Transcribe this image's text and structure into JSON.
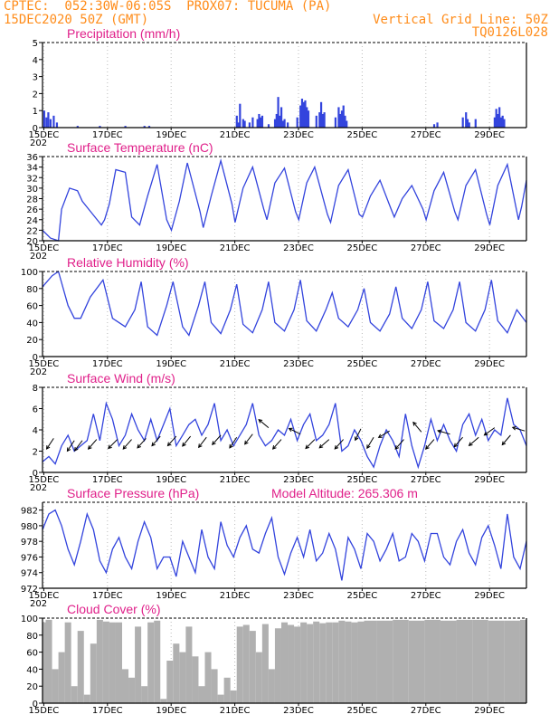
{
  "header": {
    "line1": "CPTEC:  052:30W-06:05S  PROX07: TUCUMA (PA)",
    "line2_left": "15DEC2020 50Z (GMT)",
    "line2_right": "Vertical Grid Line: 50Z",
    "line3_right": "TQ0126L028"
  },
  "colors": {
    "series": "#3344dd",
    "title": "#e0208a",
    "header": "#ff8c1a",
    "cloud": "#b0b0b0",
    "arrow": "#000000"
  },
  "x_axis": {
    "labels": [
      "15DEC",
      "17DEC",
      "19DEC",
      "21DEC",
      "23DEC",
      "25DEC",
      "27DEC",
      "29DEC"
    ],
    "range_days": [
      0,
      15.2
    ],
    "cut_label": "202"
  },
  "chart_data": [
    {
      "type": "bar",
      "title": "Precipitation (mm/h)",
      "ylim": [
        0,
        5
      ],
      "yticks": [
        "0",
        "1",
        "2",
        "3",
        "4",
        "5"
      ],
      "note": "hourly precipitation bars; values estimated",
      "x_days": [
        0.05,
        0.12,
        0.18,
        0.25,
        0.35,
        0.45,
        1.1,
        1.8,
        2.6,
        3.2,
        3.35,
        6.1,
        6.15,
        6.2,
        6.3,
        6.35,
        6.5,
        6.6,
        6.75,
        6.8,
        6.85,
        6.9,
        7.1,
        7.3,
        7.35,
        7.4,
        7.45,
        7.5,
        7.55,
        7.6,
        7.7,
        8.0,
        8.1,
        8.15,
        8.2,
        8.25,
        8.3,
        8.35,
        8.6,
        8.7,
        8.75,
        8.8,
        8.85,
        9.2,
        9.3,
        9.35,
        9.4,
        9.45,
        9.5,
        9.55,
        12.3,
        12.4,
        13.2,
        13.3,
        13.35,
        13.4,
        13.6,
        14.2,
        14.25,
        14.3,
        14.35,
        14.4,
        14.45,
        14.5
      ],
      "values": [
        1.0,
        0.6,
        0.9,
        0.5,
        0.7,
        0.3,
        0.1,
        0.1,
        0.1,
        0.1,
        0.1,
        0.7,
        0.3,
        1.4,
        0.5,
        0.4,
        0.3,
        0.6,
        0.5,
        0.8,
        0.6,
        0.7,
        0.2,
        0.5,
        0.8,
        1.8,
        0.7,
        1.2,
        0.4,
        0.5,
        0.3,
        0.6,
        1.3,
        1.7,
        1.5,
        1.6,
        1.2,
        1.0,
        0.7,
        0.9,
        1.5,
        0.8,
        0.9,
        0.6,
        1.2,
        0.8,
        1.0,
        1.3,
        0.7,
        0.4,
        0.2,
        0.3,
        0.6,
        0.9,
        0.5,
        0.3,
        0.5,
        0.6,
        1.1,
        0.8,
        1.2,
        0.6,
        0.7,
        0.5
      ]
    },
    {
      "type": "line",
      "title": "Surface Temperature (nC)",
      "ylim": [
        20,
        36
      ],
      "yticks": [
        "20",
        "22",
        "24",
        "26",
        "28",
        "30",
        "32",
        "34",
        "36"
      ],
      "x_days": [
        0.0,
        0.25,
        0.5,
        0.6,
        0.85,
        1.1,
        1.25,
        1.45,
        1.85,
        1.95,
        2.1,
        2.3,
        2.6,
        2.8,
        3.05,
        3.3,
        3.6,
        3.9,
        4.05,
        4.3,
        4.55,
        4.95,
        5.05,
        5.3,
        5.6,
        5.95,
        6.05,
        6.3,
        6.6,
        6.95,
        7.05,
        7.3,
        7.6,
        7.95,
        8.05,
        8.3,
        8.55,
        8.95,
        9.05,
        9.3,
        9.6,
        9.95,
        10.05,
        10.3,
        10.6,
        10.95,
        11.05,
        11.3,
        11.6,
        11.95,
        12.05,
        12.3,
        12.6,
        12.95,
        13.05,
        13.3,
        13.6,
        13.95,
        14.05,
        14.3,
        14.6,
        14.95,
        15.05,
        15.2
      ],
      "values": [
        22.0,
        20.5,
        20.0,
        26.0,
        30.0,
        29.5,
        27.5,
        26.0,
        23.0,
        24.0,
        27.0,
        33.5,
        33.0,
        24.5,
        23.0,
        28.5,
        34.5,
        24.0,
        22.0,
        27.5,
        34.8,
        25.5,
        22.5,
        28.5,
        35.2,
        27.0,
        23.5,
        30.0,
        34.0,
        26.0,
        24.0,
        31.0,
        33.8,
        25.5,
        24.0,
        31.0,
        34.0,
        25.0,
        23.5,
        30.5,
        33.5,
        25.0,
        24.5,
        28.5,
        31.5,
        26.0,
        24.5,
        28.0,
        30.5,
        26.0,
        24.0,
        29.5,
        33.0,
        25.5,
        24.0,
        30.5,
        33.5,
        25.0,
        23.0,
        30.5,
        34.5,
        24.0,
        26.5,
        31.5
      ]
    },
    {
      "type": "line",
      "title": "Relative Humidity (%)",
      "ylim": [
        0,
        100
      ],
      "yticks": [
        "0",
        "20",
        "40",
        "60",
        "80",
        "100"
      ],
      "x_days": [
        0.0,
        0.3,
        0.5,
        0.8,
        1.0,
        1.2,
        1.5,
        1.9,
        2.2,
        2.6,
        2.9,
        3.1,
        3.3,
        3.6,
        3.9,
        4.1,
        4.4,
        4.6,
        4.9,
        5.1,
        5.3,
        5.6,
        5.9,
        6.1,
        6.3,
        6.6,
        6.9,
        7.1,
        7.3,
        7.6,
        7.9,
        8.1,
        8.3,
        8.6,
        8.9,
        9.1,
        9.3,
        9.6,
        9.9,
        10.1,
        10.3,
        10.6,
        10.9,
        11.1,
        11.3,
        11.6,
        11.9,
        12.1,
        12.3,
        12.6,
        12.9,
        13.1,
        13.3,
        13.6,
        13.9,
        14.1,
        14.3,
        14.6,
        14.9,
        15.2
      ],
      "values": [
        82,
        95,
        100,
        60,
        45,
        45,
        70,
        90,
        45,
        35,
        55,
        88,
        35,
        25,
        60,
        88,
        35,
        25,
        60,
        88,
        40,
        27,
        55,
        85,
        38,
        28,
        55,
        88,
        40,
        30,
        55,
        90,
        42,
        30,
        55,
        75,
        45,
        35,
        55,
        80,
        40,
        30,
        50,
        82,
        45,
        33,
        55,
        88,
        42,
        33,
        55,
        88,
        40,
        30,
        55,
        90,
        42,
        28,
        55,
        40
      ]
    },
    {
      "type": "line",
      "title": "Surface Wind (m/s)",
      "ylim": [
        0,
        8
      ],
      "yticks": [
        "0",
        "2",
        "4",
        "6",
        "8"
      ],
      "x_days": [
        0.0,
        0.2,
        0.4,
        0.6,
        0.8,
        1.0,
        1.2,
        1.4,
        1.6,
        1.8,
        2.0,
        2.2,
        2.4,
        2.6,
        2.8,
        3.0,
        3.2,
        3.4,
        3.6,
        3.8,
        4.0,
        4.2,
        4.4,
        4.6,
        4.8,
        5.0,
        5.2,
        5.4,
        5.6,
        5.8,
        6.0,
        6.2,
        6.4,
        6.6,
        6.8,
        7.0,
        7.2,
        7.4,
        7.6,
        7.8,
        8.0,
        8.2,
        8.4,
        8.6,
        8.8,
        9.0,
        9.2,
        9.4,
        9.6,
        9.8,
        10.0,
        10.2,
        10.4,
        10.6,
        10.8,
        11.0,
        11.2,
        11.4,
        11.6,
        11.8,
        12.0,
        12.2,
        12.4,
        12.6,
        12.8,
        13.0,
        13.2,
        13.4,
        13.6,
        13.8,
        14.0,
        14.2,
        14.4,
        14.6,
        14.8,
        15.0,
        15.2
      ],
      "values": [
        1.0,
        1.5,
        0.8,
        2.5,
        3.5,
        2.0,
        2.5,
        3.0,
        5.5,
        3.0,
        6.5,
        5.0,
        2.5,
        3.5,
        5.5,
        4.0,
        3.0,
        5.0,
        3.0,
        4.5,
        6.0,
        2.5,
        3.5,
        4.5,
        5.0,
        3.5,
        4.5,
        6.5,
        3.0,
        4.0,
        2.5,
        3.5,
        4.5,
        6.5,
        3.5,
        2.5,
        3.0,
        4.0,
        3.5,
        5.0,
        3.0,
        4.5,
        5.5,
        3.0,
        3.5,
        4.5,
        6.5,
        2.0,
        2.5,
        4.0,
        3.0,
        1.5,
        0.5,
        2.5,
        4.0,
        3.0,
        1.5,
        5.5,
        2.5,
        0.5,
        2.5,
        5.0,
        3.0,
        4.5,
        3.0,
        2.0,
        4.5,
        5.5,
        3.5,
        5.0,
        3.0,
        4.0,
        3.5,
        7.0,
        4.5,
        4.0,
        2.5
      ],
      "arrows": {
        "x_days": [
          0.35,
          1.0,
          1.25,
          1.7,
          2.35,
          2.8,
          3.25,
          3.7,
          4.2,
          4.65,
          5.15,
          5.6,
          6.1,
          6.6,
          7.1,
          7.5,
          8.1,
          8.55,
          9.0,
          9.45,
          10.0,
          10.4,
          10.9,
          11.35,
          11.9,
          12.3,
          12.8,
          13.2,
          13.7,
          14.2,
          14.7,
          15.15
        ],
        "values": [
          3.2,
          3.0,
          3.0,
          3.1,
          3.1,
          3.1,
          3.2,
          3.4,
          3.4,
          3.4,
          3.3,
          3.5,
          3.3,
          3.6,
          4.2,
          3.1,
          3.6,
          3.1,
          3.1,
          3.1,
          4.1,
          3.3,
          3.9,
          3.1,
          3.8,
          3.1,
          3.6,
          3.3,
          3.3,
          4.2,
          3.5,
          3.9
        ],
        "u": [
          0.6,
          0.6,
          0.6,
          0.7,
          0.9,
          0.8,
          0.9,
          0.7,
          0.9,
          0.9,
          0.7,
          0.9,
          0.6,
          0.7,
          0.6,
          0.8,
          0.6,
          0.9,
          0.8,
          0.9,
          0.3,
          0.6,
          0.5,
          0.8,
          0.5,
          0.7,
          0.7,
          0.8,
          0.7,
          0.7,
          0.6,
          0.7
        ],
        "v": [
          0.9,
          0.9,
          0.8,
          0.8,
          0.9,
          0.9,
          1.0,
          0.8,
          1.0,
          1.1,
          0.9,
          1.0,
          0.9,
          0.9,
          -0.5,
          0.9,
          -0.3,
          0.9,
          0.7,
          1.0,
          0.6,
          1.0,
          0.3,
          0.9,
          -0.6,
          0.8,
          -0.2,
          0.9,
          0.6,
          0.5,
          0.7,
          -0.2
        ]
      }
    },
    {
      "type": "line",
      "title": "Surface Pressure (hPa)",
      "annotation": "Model Altitude: 265.306  m",
      "ylim": [
        972,
        983
      ],
      "yticks": [
        "972",
        "974",
        "976",
        "978",
        "980",
        "982"
      ],
      "x_days": [
        0.0,
        0.2,
        0.4,
        0.6,
        0.8,
        1.0,
        1.2,
        1.4,
        1.6,
        1.8,
        2.0,
        2.2,
        2.4,
        2.6,
        2.8,
        3.0,
        3.2,
        3.4,
        3.6,
        3.8,
        4.0,
        4.2,
        4.4,
        4.6,
        4.8,
        5.0,
        5.2,
        5.4,
        5.6,
        5.8,
        6.0,
        6.2,
        6.4,
        6.6,
        6.8,
        7.0,
        7.2,
        7.4,
        7.6,
        7.8,
        8.0,
        8.2,
        8.4,
        8.6,
        8.8,
        9.0,
        9.2,
        9.4,
        9.6,
        9.8,
        10.0,
        10.2,
        10.4,
        10.6,
        10.8,
        11.0,
        11.2,
        11.4,
        11.6,
        11.8,
        12.0,
        12.2,
        12.4,
        12.6,
        12.8,
        13.0,
        13.2,
        13.4,
        13.6,
        13.8,
        14.0,
        14.2,
        14.4,
        14.6,
        14.8,
        15.0,
        15.2
      ],
      "values": [
        979.5,
        981.5,
        982.0,
        980.0,
        977.0,
        975.0,
        978.0,
        981.5,
        979.5,
        975.5,
        974.0,
        977.0,
        978.5,
        976.0,
        974.5,
        978.0,
        980.5,
        978.5,
        974.5,
        976.0,
        976.0,
        973.5,
        978.0,
        976.0,
        974.0,
        979.5,
        976.0,
        974.5,
        980.5,
        977.5,
        976.0,
        978.5,
        980.0,
        977.0,
        976.5,
        979.0,
        981.0,
        976.0,
        973.8,
        976.5,
        978.5,
        976.0,
        979.5,
        975.5,
        976.5,
        979.0,
        977.0,
        973.0,
        978.5,
        977.0,
        974.5,
        979.0,
        978.0,
        975.5,
        977.0,
        979.0,
        975.5,
        976.0,
        979.0,
        978.0,
        975.5,
        979.0,
        979.0,
        976.0,
        975.0,
        978.0,
        979.5,
        976.5,
        975.0,
        978.5,
        980.0,
        977.5,
        974.5,
        981.5,
        976.0,
        974.5,
        978.0
      ]
    },
    {
      "type": "area",
      "title": "Cloud Cover (%)",
      "ylim": [
        0,
        100
      ],
      "yticks": [
        "0",
        "20",
        "40",
        "60",
        "80",
        "100"
      ],
      "x_days": [
        0.0,
        0.1,
        0.3,
        0.5,
        0.7,
        0.9,
        1.1,
        1.3,
        1.5,
        1.7,
        1.9,
        2.1,
        2.3,
        2.5,
        2.7,
        2.9,
        3.1,
        3.3,
        3.5,
        3.7,
        3.9,
        4.1,
        4.3,
        4.5,
        4.7,
        4.9,
        5.1,
        5.3,
        5.5,
        5.7,
        5.9,
        6.1,
        6.3,
        6.5,
        6.7,
        6.9,
        7.1,
        7.3,
        7.5,
        7.7,
        7.9,
        8.1,
        8.3,
        8.5,
        8.7,
        8.9,
        9.1,
        9.3,
        9.5,
        9.7,
        9.9,
        10.1,
        10.5,
        11.0,
        11.5,
        12.0,
        12.5,
        13.0,
        13.5,
        14.0,
        14.5,
        15.0,
        15.2
      ],
      "values": [
        95,
        98,
        40,
        60,
        95,
        20,
        85,
        10,
        70,
        98,
        96,
        95,
        95,
        40,
        30,
        90,
        20,
        95,
        97,
        5,
        50,
        70,
        60,
        90,
        55,
        20,
        60,
        40,
        10,
        30,
        15,
        90,
        92,
        85,
        60,
        93,
        40,
        88,
        95,
        92,
        90,
        95,
        93,
        96,
        94,
        95,
        95,
        97,
        96,
        95,
        96,
        97,
        97,
        98,
        97,
        98,
        97,
        98,
        98,
        97,
        97,
        98,
        96
      ]
    }
  ],
  "panels": [
    {
      "name": "precipitation-panel",
      "y0": 47,
      "y1": 141
    },
    {
      "name": "temperature-panel",
      "y0": 173,
      "y1": 266
    },
    {
      "name": "humidity-panel",
      "y0": 300,
      "y1": 394
    },
    {
      "name": "wind-panel",
      "y0": 428,
      "y1": 522
    },
    {
      "name": "pressure-panel",
      "y0": 555,
      "y1": 650
    },
    {
      "name": "cloud-panel",
      "y0": 683,
      "y1": 777
    }
  ]
}
